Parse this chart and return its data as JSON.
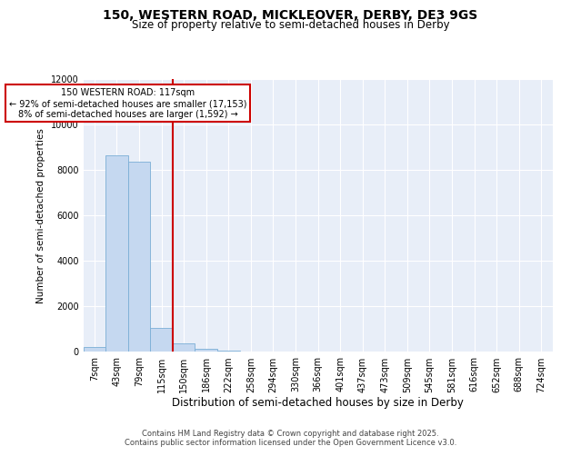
{
  "title_line1": "150, WESTERN ROAD, MICKLEOVER, DERBY, DE3 9GS",
  "title_line2": "Size of property relative to semi-detached houses in Derby",
  "xlabel": "Distribution of semi-detached houses by size in Derby",
  "ylabel": "Number of semi-detached properties",
  "annotation_title": "150 WESTERN ROAD: 117sqm",
  "annotation_line2": "← 92% of semi-detached houses are smaller (17,153)",
  "annotation_line3": "8% of semi-detached houses are larger (1,592) →",
  "footer_line1": "Contains HM Land Registry data © Crown copyright and database right 2025.",
  "footer_line2": "Contains public sector information licensed under the Open Government Licence v3.0.",
  "bin_labels": [
    "7sqm",
    "43sqm",
    "79sqm",
    "115sqm",
    "150sqm",
    "186sqm",
    "222sqm",
    "258sqm",
    "294sqm",
    "330sqm",
    "366sqm",
    "401sqm",
    "437sqm",
    "473sqm",
    "509sqm",
    "545sqm",
    "581sqm",
    "616sqm",
    "652sqm",
    "688sqm",
    "724sqm"
  ],
  "bar_values": [
    200,
    8650,
    8350,
    1050,
    350,
    130,
    50,
    20,
    10,
    5,
    2,
    1,
    1,
    0,
    0,
    0,
    0,
    0,
    0,
    0,
    0
  ],
  "bar_color": "#c5d8f0",
  "bar_edge_color": "#7aaed6",
  "property_line_color": "#cc0000",
  "ylim": [
    0,
    12000
  ],
  "yticks": [
    0,
    2000,
    4000,
    6000,
    8000,
    10000,
    12000
  ],
  "background_color": "#e8eef8",
  "grid_color": "#ffffff",
  "annotation_box_color": "#ffffff",
  "annotation_box_edge": "#cc0000",
  "title_fontsize": 10,
  "subtitle_fontsize": 8.5,
  "ylabel_fontsize": 7.5,
  "xlabel_fontsize": 8.5,
  "tick_fontsize": 7,
  "annotation_fontsize": 7,
  "footer_fontsize": 6
}
